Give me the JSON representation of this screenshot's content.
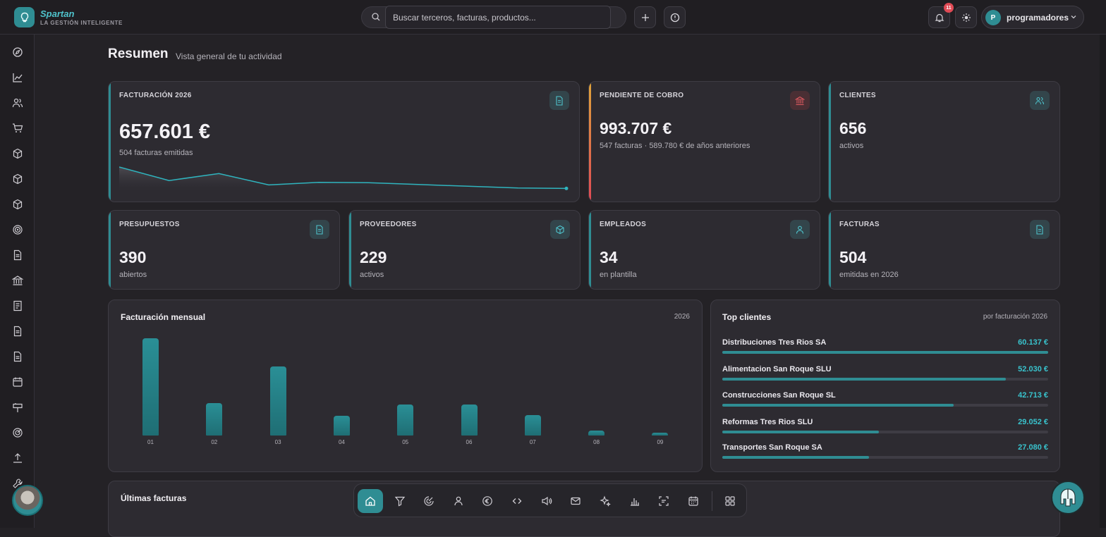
{
  "brand": {
    "name": "Spartan",
    "tagline": "LA GESTIÓN INTELIGENTE"
  },
  "search": {
    "placeholder": "Buscar terceros, facturas, productos..."
  },
  "topbar": {
    "notifications_count": "11",
    "user_initial": "P",
    "user_name": "programadores"
  },
  "page": {
    "title": "Resumen",
    "subtitle": "Vista general de tu actividad"
  },
  "kpis": {
    "facturacion": {
      "label": "FACTURACIÓN 2026",
      "value": "657.601 €",
      "sub": "504 facturas emitidas",
      "trend": [
        50,
        19,
        35,
        9,
        15,
        14,
        10,
        6,
        2,
        1
      ]
    },
    "pendiente": {
      "label": "PENDIENTE DE COBRO",
      "value": "993.707 €",
      "sub": "547 facturas · 589.780 € de años anteriores"
    },
    "clientes": {
      "label": "CLIENTES",
      "value": "656",
      "sub": "activos"
    },
    "presupuestos": {
      "label": "PRESUPUESTOS",
      "value": "390",
      "sub": "abiertos"
    },
    "proveedores": {
      "label": "PROVEEDORES",
      "value": "229",
      "sub": "activos"
    },
    "empleados": {
      "label": "EMPLEADOS",
      "value": "34",
      "sub": "en plantilla"
    },
    "facturas": {
      "label": "FACTURAS",
      "value": "504",
      "sub": "emitidas en 2026"
    }
  },
  "monthly": {
    "title": "Facturación mensual",
    "year": "2026"
  },
  "chart_data": {
    "type": "bar",
    "title": "Facturación mensual",
    "categories": [
      "01",
      "02",
      "03",
      "04",
      "05",
      "06",
      "07",
      "08",
      "09"
    ],
    "values": [
      100,
      33,
      71,
      20,
      32,
      32,
      21,
      5,
      3
    ]
  },
  "top_clients": {
    "title": "Top clientes",
    "meta": "por facturación 2026",
    "items": [
      {
        "name": "Distribuciones Tres Rios SA",
        "value": "60.137 €",
        "share": 1.0
      },
      {
        "name": "Alimentacion San Roque SLU",
        "value": "52.030 €",
        "share": 0.87
      },
      {
        "name": "Construcciones San Roque SL",
        "value": "42.713 €",
        "share": 0.71
      },
      {
        "name": "Reformas Tres Rios SLU",
        "value": "29.052 €",
        "share": 0.48
      },
      {
        "name": "Transportes San Roque SA",
        "value": "27.080 €",
        "share": 0.45
      }
    ]
  },
  "invoices": {
    "title": "Últimas facturas"
  },
  "colors": {
    "accent": "#2f8d93",
    "accent_text": "#39c3cd",
    "warning": "#e0793a",
    "danger": "#e04a55"
  }
}
